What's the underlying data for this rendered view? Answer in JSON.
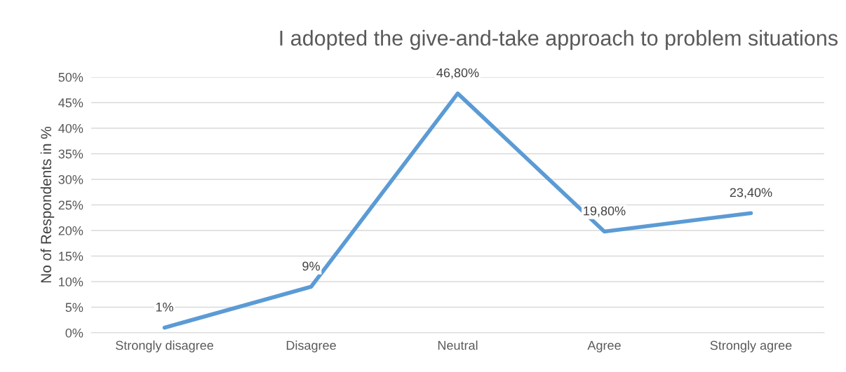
{
  "chart_data": {
    "type": "line",
    "title": "I adopted the give-and-take approach to problem situations",
    "ylabel": "No of Respondents in %",
    "categories": [
      "Strongly disagree",
      "Disagree",
      "Neutral",
      "Agree",
      "Strongly agree"
    ],
    "series": [
      {
        "color": "#5b9bd5",
        "values": [
          1,
          9,
          46.8,
          19.8,
          23.4
        ],
        "value_labels": [
          "1%",
          "9%",
          "46,80%",
          "19,80%",
          "23,40%"
        ]
      }
    ],
    "ylim": [
      0,
      50
    ],
    "yticks": [
      {
        "value": 0,
        "label": "0%"
      },
      {
        "value": 5,
        "label": "5%"
      },
      {
        "value": 10,
        "label": "10%"
      },
      {
        "value": 15,
        "label": "15%"
      },
      {
        "value": 20,
        "label": "20%"
      },
      {
        "value": 25,
        "label": "25%"
      },
      {
        "value": 30,
        "label": "30%"
      },
      {
        "value": 35,
        "label": "35%"
      },
      {
        "value": 40,
        "label": "40%"
      },
      {
        "value": 45,
        "label": "45%"
      },
      {
        "value": 50,
        "label": "50%"
      }
    ],
    "grid": "y",
    "legend": false,
    "marker": "none",
    "line_style": "solid"
  }
}
